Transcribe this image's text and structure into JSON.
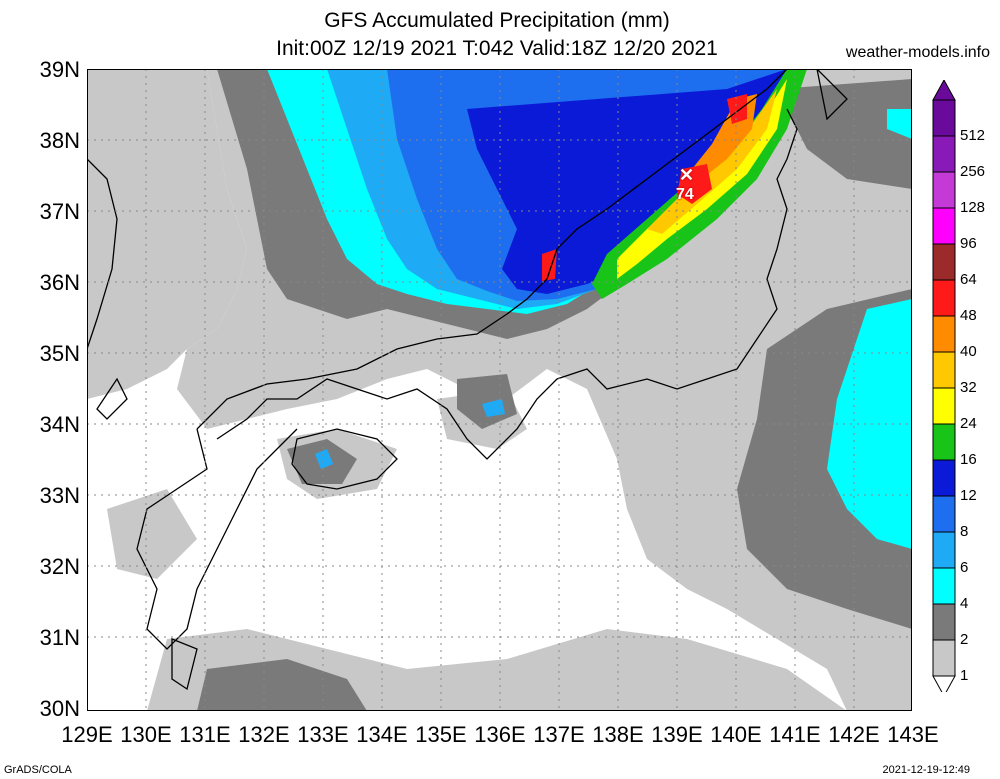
{
  "header": {
    "title_line1": "GFS Accumulated Precipitation (mm)",
    "title_line2": "Init:00Z 12/19 2021 T:042 Valid:18Z 12/20 2021",
    "website": "weather-models.info"
  },
  "axes": {
    "lat_labels": [
      "39N",
      "38N",
      "37N",
      "36N",
      "35N",
      "34N",
      "33N",
      "32N",
      "31N",
      "30N"
    ],
    "lon_labels": [
      "129E",
      "130E",
      "131E",
      "132E",
      "133E",
      "134E",
      "135E",
      "136E",
      "137E",
      "138E",
      "139E",
      "140E",
      "141E",
      "142E",
      "143E"
    ]
  },
  "colorbar": {
    "levels": [
      "512",
      "256",
      "128",
      "96",
      "64",
      "48",
      "40",
      "32",
      "24",
      "16",
      "12",
      "8",
      "6",
      "4",
      "2",
      "1"
    ],
    "colors": [
      "#6a0a9a",
      "#8a1ab8",
      "#c43ad6",
      "#ff00ff",
      "#9b2a2a",
      "#ff1a1a",
      "#ff8c00",
      "#ffc800",
      "#ffff00",
      "#19c419",
      "#0a1ad6",
      "#1e6ef0",
      "#1eaaf5",
      "#00ffff",
      "#7a7a7a",
      "#c8c8c8"
    ]
  },
  "map": {
    "max_marker": {
      "symbol": "✕",
      "value": "74"
    }
  },
  "footer": {
    "left": "GrADS/COLA",
    "right": "2021-12-19-12:49"
  }
}
